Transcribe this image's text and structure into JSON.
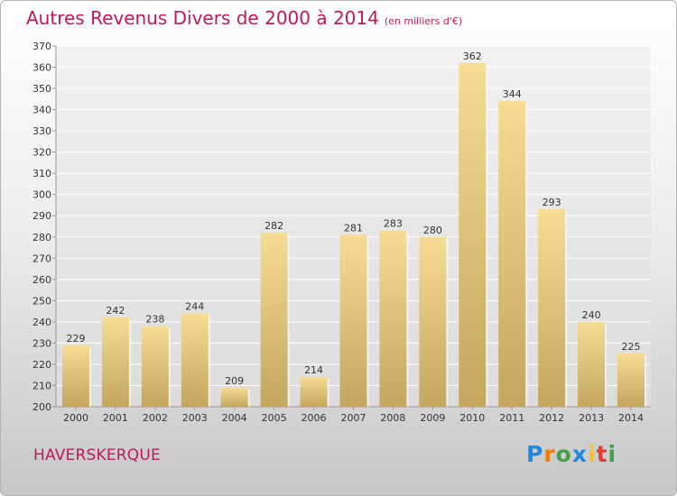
{
  "title": "Autres Revenus Divers de 2000 à 2014",
  "unit": "(en milliers d'€)",
  "location": "HAVERSKERQUE",
  "logo": {
    "text": "Proxiti",
    "colors": [
      "#1e88e5",
      "#f57c00",
      "#43a047",
      "#1e88e5",
      "#fbc02d",
      "#e53935",
      "#43a047"
    ]
  },
  "chart_data": {
    "type": "bar",
    "categories": [
      "2000",
      "2001",
      "2002",
      "2003",
      "2004",
      "2005",
      "2006",
      "2007",
      "2008",
      "2009",
      "2010",
      "2011",
      "2012",
      "2013",
      "2014"
    ],
    "values": [
      229,
      242,
      238,
      244,
      209,
      282,
      214,
      281,
      283,
      280,
      362,
      344,
      293,
      240,
      225
    ],
    "ylim": [
      200,
      370
    ],
    "yticks": [
      200,
      210,
      220,
      230,
      240,
      250,
      260,
      270,
      280,
      290,
      300,
      310,
      320,
      330,
      340,
      350,
      360,
      370
    ],
    "grid": true,
    "bar_color": "#e6c77a"
  }
}
